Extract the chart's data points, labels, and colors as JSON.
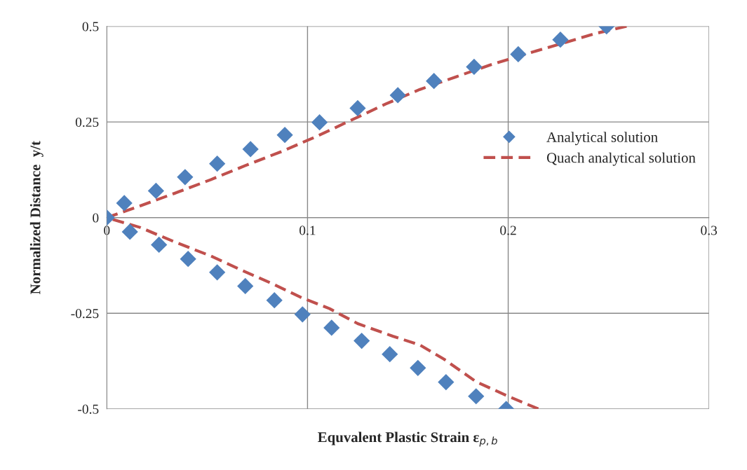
{
  "chart_data": {
    "type": "scatter",
    "xlabel": "Equvalent Plastic Strain ε$_{p,b}$",
    "ylabel": "Normalized Distance  y/t",
    "xlim": [
      0,
      0.3
    ],
    "xticks": [
      0,
      0.1,
      0.2,
      0.3
    ],
    "ylim": [
      -0.5,
      0.5
    ],
    "yticks": [
      -0.5,
      -0.25,
      0,
      0.25,
      0.5
    ],
    "grid": true,
    "legend": "right",
    "series": [
      {
        "name": "Analytical solution",
        "marker": "diamond",
        "color": "#4f81bd",
        "x": [
          0,
          0.0087,
          0.0245,
          0.039,
          0.055,
          0.0716,
          0.0887,
          0.106,
          0.125,
          0.145,
          0.163,
          0.183,
          0.205,
          0.226,
          0.249,
          0.0115,
          0.026,
          0.0405,
          0.055,
          0.069,
          0.0835,
          0.0975,
          0.112,
          0.127,
          0.141,
          0.155,
          0.169,
          0.184,
          0.199
        ],
        "values": [
          0,
          0.038,
          0.07,
          0.106,
          0.141,
          0.179,
          0.216,
          0.249,
          0.286,
          0.32,
          0.357,
          0.394,
          0.427,
          0.465,
          0.5,
          -0.037,
          -0.071,
          -0.108,
          -0.143,
          -0.179,
          -0.216,
          -0.253,
          -0.288,
          -0.322,
          -0.357,
          -0.393,
          -0.43,
          -0.467,
          -0.5
        ]
      },
      {
        "name": "Quach analytical solution",
        "type": "line",
        "line_style": "dashed",
        "marker": "none",
        "color": "#c0504d",
        "x": [
          0.215,
          0.2,
          0.184,
          0.168,
          0.156,
          0.1425,
          0.125,
          0.111,
          0.097,
          0.083,
          0.0657,
          0.0517,
          0.034,
          0.0168,
          0,
          0.0168,
          0.034,
          0.0517,
          0.069,
          0.0867,
          0.104,
          0.1215,
          0.139,
          0.156,
          0.174,
          0.191,
          0.209,
          0.226,
          0.244,
          0.259
        ],
        "values": [
          -0.5,
          -0.467,
          -0.429,
          -0.37,
          -0.333,
          -0.31,
          -0.277,
          -0.238,
          -0.209,
          -0.174,
          -0.134,
          -0.1,
          -0.064,
          -0.026,
          0,
          0.031,
          0.064,
          0.099,
          0.136,
          0.172,
          0.211,
          0.254,
          0.297,
          0.335,
          0.368,
          0.399,
          0.428,
          0.454,
          0.482,
          0.5
        ]
      }
    ]
  }
}
